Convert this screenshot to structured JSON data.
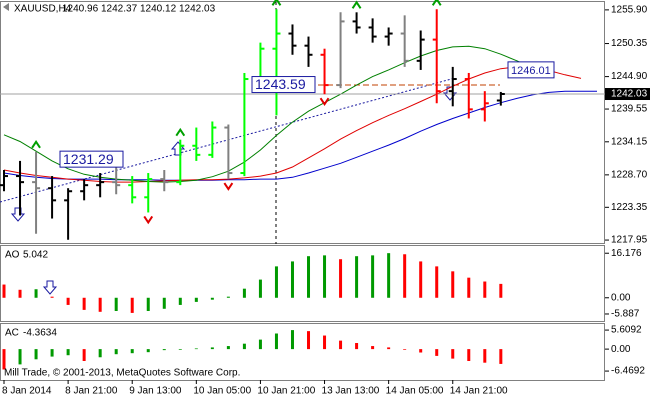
{
  "chart_data": [
    {
      "type": "ohlc",
      "title": "XAUUSD,H4",
      "open": [
        1227.0,
        1228.5,
        1227.5,
        1226.5,
        1224.5,
        1226.0,
        1227.0,
        1227.5,
        1227.0,
        1225.0,
        1228.0,
        1227.5,
        1233.5,
        1232.0,
        1236.5,
        1229.0,
        1244.5,
        1249.5,
        1252.0,
        1250.0,
        1248.5,
        1243.5,
        1254.0,
        1253.0,
        1251.5,
        1252.0,
        1247.5,
        1251.0,
        1242.5,
        1244.5,
        1239.5,
        1240.96
      ],
      "high": [
        1229.5,
        1231.0,
        1232.5,
        1228.5,
        1226.5,
        1228.0,
        1229.0,
        1230.0,
        1228.5,
        1229.0,
        1229.5,
        1234.5,
        1236.5,
        1237.5,
        1237.0,
        1245.5,
        1250.5,
        1256.0,
        1253.5,
        1251.5,
        1249.5,
        1255.5,
        1255.5,
        1254.5,
        1253.0,
        1255.0,
        1252.5,
        1256.0,
        1246.5,
        1245.5,
        1242.5,
        1242.37
      ],
      "low": [
        1226.0,
        1222.0,
        1219.0,
        1221.5,
        1218.0,
        1224.5,
        1225.0,
        1225.5,
        1224.0,
        1222.5,
        1226.0,
        1227.0,
        1231.0,
        1231.5,
        1228.0,
        1228.5,
        1243.0,
        1238.5,
        1248.5,
        1246.5,
        1242.0,
        1243.0,
        1252.0,
        1250.5,
        1250.0,
        1246.5,
        1246.0,
        1240.5,
        1240.0,
        1238.0,
        1237.5,
        1240.12
      ],
      "close": [
        1228.5,
        1227.5,
        1226.5,
        1224.5,
        1226.0,
        1227.0,
        1227.5,
        1227.0,
        1225.0,
        1228.0,
        1227.5,
        1233.5,
        1232.0,
        1236.5,
        1229.0,
        1244.5,
        1249.5,
        1252.0,
        1250.0,
        1248.5,
        1243.5,
        1254.0,
        1253.0,
        1251.5,
        1252.0,
        1247.5,
        1251.0,
        1242.5,
        1244.5,
        1239.5,
        1240.5,
        1242.03
      ],
      "colors": [
        "#000000",
        "#000000",
        "#808080",
        "#000000",
        "#000000",
        "#000000",
        "#000000",
        "#808080",
        "#00ff00",
        "#00ff00",
        "#808080",
        "#00ff00",
        "#00ff00",
        "#00ff00",
        "#808080",
        "#00ff00",
        "#00ff00",
        "#00ff00",
        "#000000",
        "#000000",
        "#ff0000",
        "#808080",
        "#000000",
        "#000000",
        "#000000",
        "#808080",
        "#000000",
        "#ff0000",
        "#000000",
        "#ff0000",
        "#ff0000",
        "#000000"
      ],
      "lines": [
        {
          "color": "#0000cc",
          "values": [
            1229.0,
            1228.6,
            1228.3,
            1228.1,
            1228.0,
            1228.0,
            1228.0,
            1227.9,
            1227.9,
            1227.9,
            1227.8,
            1227.8,
            1227.8,
            1227.8,
            1227.9,
            1227.9,
            1228.0,
            1228.0,
            1228.3,
            1229.0,
            1229.8,
            1230.6,
            1231.6,
            1232.6,
            1233.6,
            1234.7,
            1235.9,
            1237.0,
            1238.0,
            1238.9,
            1239.8,
            1240.6,
            1241.3,
            1241.9,
            1242.3,
            1242.5,
            1242.5,
            1242.5
          ]
        },
        {
          "color": "#e00000",
          "values": [
            1229.5,
            1229.0,
            1228.6,
            1228.3,
            1228.0,
            1227.8,
            1227.6,
            1227.5,
            1227.5,
            1227.6,
            1227.7,
            1227.8,
            1227.9,
            1227.9,
            1228.0,
            1228.2,
            1228.5,
            1229.0,
            1230.0,
            1231.5,
            1233.0,
            1234.6,
            1236.0,
            1237.3,
            1238.5,
            1239.6,
            1240.8,
            1242.0,
            1243.3,
            1244.5,
            1245.5,
            1246.2,
            1246.5,
            1246.4,
            1245.9,
            1245.2,
            1244.6,
            null
          ]
        },
        {
          "color": "#008000",
          "values": [
            1235.3,
            1234.2,
            1232.6,
            1231.0,
            1229.7,
            1228.8,
            1228.3,
            1228.0,
            1227.8,
            1227.6,
            1227.5,
            1227.6,
            1227.8,
            1228.4,
            1229.3,
            1230.8,
            1232.8,
            1235.2,
            1237.4,
            1239.2,
            1240.6,
            1242.0,
            1243.5,
            1244.9,
            1246.0,
            1247.2,
            1248.3,
            1249.2,
            1249.8,
            1249.9,
            1249.5,
            1248.6,
            1247.5,
            1246.3,
            null,
            null,
            null,
            null
          ]
        }
      ],
      "fractals_up": [
        2,
        11,
        17,
        22,
        27
      ],
      "fractals_down": [
        9,
        14,
        20
      ],
      "price_labels": [
        1231.29,
        1243.59,
        1246.01
      ],
      "ylim": [
        1217.3,
        1257.2
      ],
      "yticks": [
        {
          "value": 1255.9,
          "label": "1255.90"
        },
        1250.35,
        {
          "value": 1244.9,
          "label": "1244.90"
        },
        1239.55,
        1234.15,
        {
          "value": 1228.7,
          "label": "1228.70"
        },
        1223.35,
        1217.95
      ]
    },
    {
      "type": "bar",
      "title": "AO",
      "values": [
        4.8,
        2.9,
        3.1,
        0.4,
        -2.6,
        -4.4,
        -5.1,
        -4.8,
        -5.5,
        -4.8,
        -4.0,
        -2.6,
        -1.5,
        -0.7,
        0.4,
        3.3,
        6.6,
        11.4,
        13.2,
        15.1,
        15.4,
        14.0,
        15.1,
        15.4,
        16.2,
        15.8,
        13.2,
        11.4,
        9.6,
        7.3,
        5.9,
        5.042
      ],
      "up_color": "#009900",
      "down_color": "#ff0000",
      "ylim": [
        -8.8,
        18.8
      ],
      "yticks": [
        16.176,
        {
          "value": 0,
          "label": "0.00"
        },
        -5.887
      ]
    },
    {
      "type": "bar",
      "title": "AC",
      "values": [
        -6.0,
        -4.5,
        -3.0,
        -2.2,
        -1.8,
        -3.5,
        -2.4,
        -1.5,
        -1.2,
        -0.9,
        -0.3,
        -0.2,
        0.2,
        0.5,
        0.9,
        1.6,
        2.8,
        4.6,
        5.6,
        5.3,
        4.0,
        2.5,
        1.8,
        0.9,
        0.5,
        -0.2,
        -1.0,
        -2.0,
        -2.8,
        -3.5,
        -4.0,
        -4.3634
      ],
      "up_color": "#009900",
      "down_color": "#ff0000",
      "ylim": [
        -9.1,
        7.4
      ],
      "yticks": [
        5.6092,
        {
          "value": 0,
          "label": "0.00"
        },
        -6.4692
      ],
      "footer": "Mill Trade, © 2001-2013, MetaQuotes Software Corp.",
      "xlim": [
        -0.25,
        37.5
      ],
      "xticks": [
        {
          "value": 0,
          "label": "8 Jan 2014"
        },
        {
          "value": 4,
          "label": "8 Jan 21:00"
        },
        {
          "value": 8,
          "label": "9 Jan 13:00"
        },
        {
          "value": 12,
          "label": "10 Jan 05:00"
        },
        {
          "value": 16,
          "label": "10 Jan 21:00"
        },
        {
          "value": 20,
          "label": "13 Jan 13:00"
        },
        {
          "value": 24,
          "label": "14 Jan 05:00"
        },
        {
          "value": 28,
          "label": "14 Jan 21:00"
        }
      ]
    }
  ]
}
